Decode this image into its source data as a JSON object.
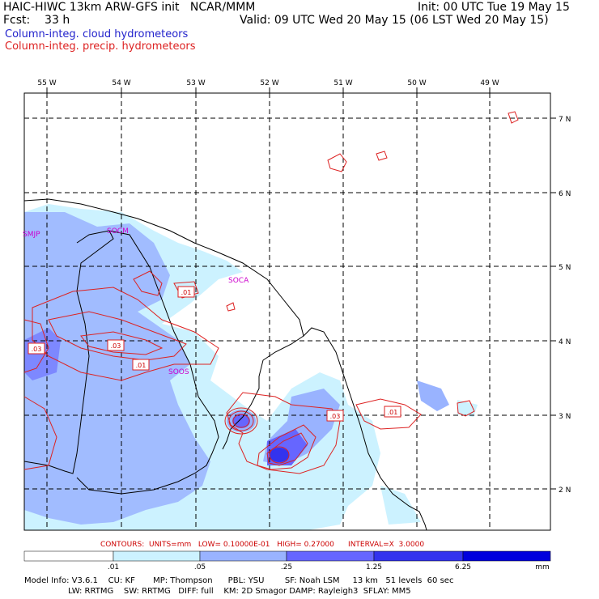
{
  "header": {
    "title": "HAIC-HIWC 13km ARW-GFS init   NCAR/MMM",
    "fcst": "Fcst:    33 h",
    "init": "Init: 00 UTC Tue 19 May 15",
    "valid": "Valid: 09 UTC Wed 20 May 15 (06 LST Wed 20 May 15)",
    "field_cloud": "Column-integ. cloud hydrometeors",
    "field_precip": "Column-integ. precip. hydrometeors",
    "color_cloud": "#2222cc",
    "color_precip": "#dd2222"
  },
  "map": {
    "lon_labels": [
      "55 W",
      "54 W",
      "53 W",
      "52 W",
      "51 W",
      "50 W",
      "49 W"
    ],
    "lat_labels": [
      "7 N",
      "6 N",
      "5 N",
      "4 N",
      "3 N",
      "2 N"
    ],
    "stations": [
      "SMJP",
      "SOCM",
      "SOCA",
      "SOOS"
    ],
    "contour_labels": [
      ".01",
      ".03",
      ".03",
      ".01",
      ".03",
      ".01"
    ]
  },
  "contours_info": "CONTOURS:  UNITS=mm   LOW= 0.10000E-01   HIGH= 0.27000      INTERVAL=X  3.0000",
  "colorbar": {
    "ticks": [
      ".01",
      ".05",
      ".25",
      "1.25",
      "6.25",
      "mm"
    ],
    "colors": [
      "#ffffff",
      "#ccf2ff",
      "#99b3ff",
      "#6666ff",
      "#3333ee",
      "#0000dd"
    ]
  },
  "footer": {
    "line1": "Model Info: V3.6.1    CU: KF       MP: Thompson      PBL: YSU        SF: Noah LSM     13 km   51 levels  60 sec",
    "line2": "                 LW: RRTMG    SW: RRTMG   DIFF: full    KM: 2D Smagor DAMP: Rayleigh3  SFLAY: MM5"
  }
}
